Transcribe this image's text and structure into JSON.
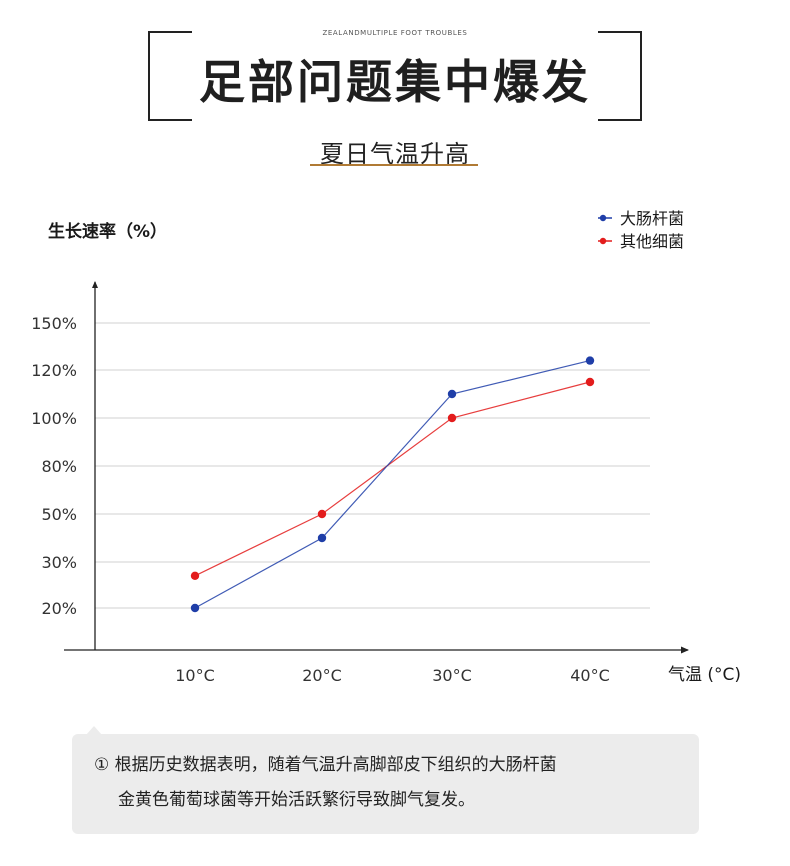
{
  "header": {
    "overline": "ZEALANDMULTIPLE FOOT TROUBLES",
    "title": "足部问题集中爆发",
    "subtitle": "夏日气温升高"
  },
  "chart_data": {
    "type": "line",
    "ylabel": "生长速率（%）",
    "xlabel": "气温 (°C)",
    "categories": [
      "10°C",
      "20°C",
      "30°C",
      "40°C"
    ],
    "y_ticks": [
      "20%",
      "30%",
      "50%",
      "80%",
      "100%",
      "120%",
      "150%"
    ],
    "series": [
      {
        "name": "大肠杆菌",
        "color": "#1f3ea8",
        "values": [
          20,
          40,
          110,
          126
        ]
      },
      {
        "name": "其他细菌",
        "color": "#e31c1c",
        "values": [
          27,
          50,
          100,
          115
        ]
      }
    ],
    "grid": true,
    "legend_position": "top-right"
  },
  "note": {
    "line1": "① 根据历史数据表明，随着气温升高脚部皮下组织的大肠杆菌",
    "line2": "金黄色葡萄球菌等开始活跃繁衍导致脚气复发。"
  }
}
